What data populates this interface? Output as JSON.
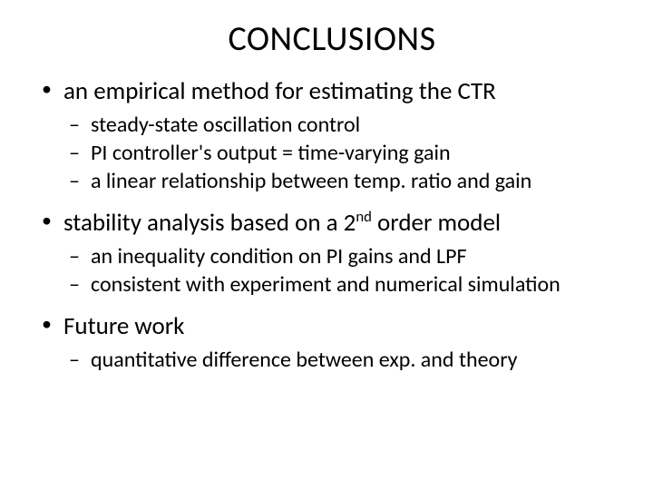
{
  "title": "CONCLUSIONS",
  "bullets": [
    {
      "text": "an empirical method for estimating the CTR",
      "sub": [
        "steady-state oscillation control",
        "PI controller's output = time-varying gain",
        "a linear relationship between temp. ratio and gain"
      ]
    },
    {
      "text_prefix": "stability analysis based on a 2",
      "text_super": "nd",
      "text_suffix": " order model",
      "sub": [
        "an inequality condition on PI gains and LPF",
        "consistent with experiment and numerical simulation"
      ]
    },
    {
      "text": "Future work",
      "sub": [
        "quantitative difference between exp. and theory"
      ]
    }
  ],
  "style": {
    "background_color": "#ffffff",
    "text_color": "#000000",
    "title_fontsize": 38,
    "level1_fontsize": 27,
    "level2_fontsize": 24,
    "font_family": "Calibri"
  }
}
